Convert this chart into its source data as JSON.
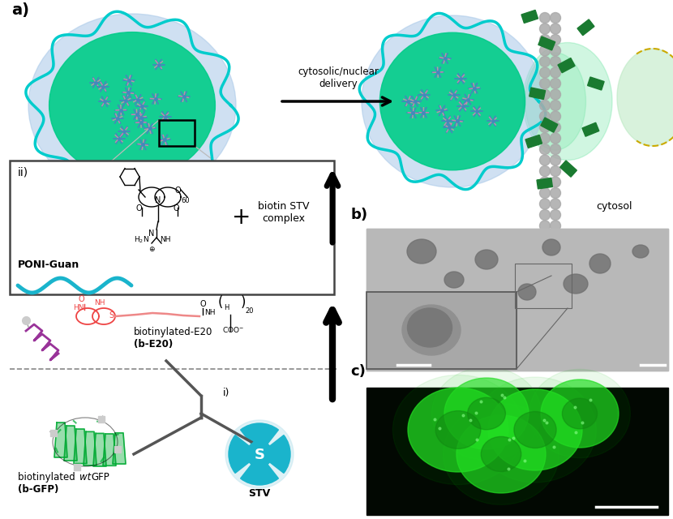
{
  "bg_color": "#ffffff",
  "panel_a_label": "a)",
  "panel_b_label": "b)",
  "panel_c_label": "c)",
  "panel_ii_label": "ii)",
  "panel_i_label": "i)",
  "arrow_text_line1": "cytosolic/nuclear",
  "arrow_text_line2": "delivery",
  "cytosol_text": "cytosol",
  "poni_guan_text": "PONI-Guan",
  "biotin_stv_text_line1": "biotin STV",
  "biotin_stv_text_line2": "complex",
  "plus_text": "+",
  "b_e20_line1": "biotinylated-E20",
  "b_e20_line2": "(b-E20)",
  "b_gfp_line1": "biotinylated ",
  "b_gfp_italic": "wt",
  "b_gfp_line2": "GFP",
  "b_gfp_line3": "(b-GFP)",
  "stv_label": "STV",
  "stv_s_text": "S",
  "cell_outer_color": "#a8c8e8",
  "cell_inner_color": "#00cc88",
  "cell_membrane_color": "#00cccc",
  "nanoparticle_color": "#4488bb",
  "protein_pink_color": "#dd88aa",
  "green_rect_color": "#1a7a30",
  "stv_color": "#1ab4cc",
  "stv_bg_color": "#c8e8f0",
  "biotin_red_color": "#ee4444",
  "peptide_color": "#993399",
  "gfp_green_color": "#00aa33",
  "box_border_color": "#444444",
  "arrow_color": "#111111",
  "dashed_color": "#888888",
  "mem_circle_color": "#aaaaaa",
  "figsize": [
    8.3,
    6.4
  ],
  "dpi": 100
}
